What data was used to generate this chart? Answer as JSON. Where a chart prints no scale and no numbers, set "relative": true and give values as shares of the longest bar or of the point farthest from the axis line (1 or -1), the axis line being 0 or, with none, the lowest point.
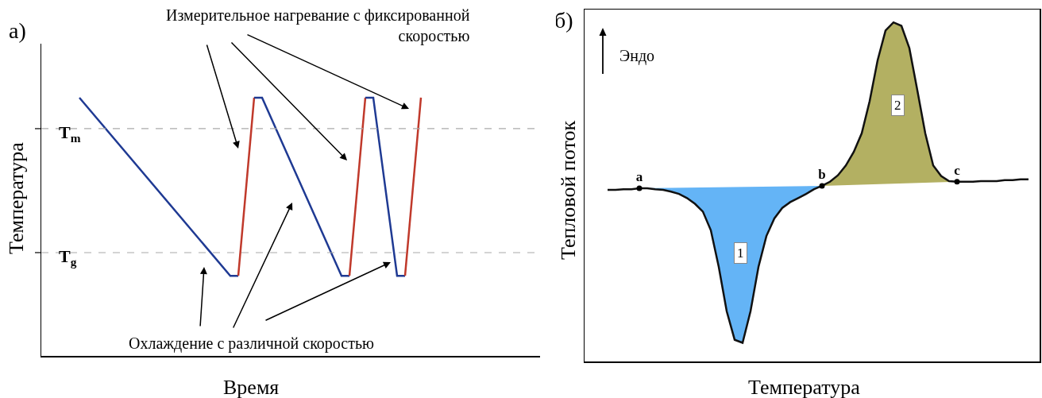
{
  "chart_data": [
    {
      "type": "line",
      "title": "а)",
      "xlabel": "Время",
      "ylabel": "Температура",
      "relative": true,
      "annotations": [
        "Измерительное нагревание с фиксированной скоростью",
        "Охлаждение с различной скоростью"
      ],
      "categories": [
        null,
        null,
        null,
        null,
        null,
        null,
        null,
        null,
        null,
        null,
        null,
        null,
        null,
        null,
        null,
        null,
        null,
        null,
        null,
        null,
        null,
        null,
        null,
        null,
        null,
        null,
        null,
        null,
        null,
        null,
        null,
        null,
        null,
        null,
        null,
        null,
        null,
        null,
        null,
        null,
        null,
        null,
        null,
        null,
        null,
        null,
        null,
        null,
        null,
        null,
        null,
        null,
        null,
        null,
        null,
        null,
        null,
        null,
        null,
        null,
        null,
        null
      ],
      "ref_lines": [
        {
          "axis": "y",
          "value": 0.88,
          "label": "T$_{m}$",
          "color": "#aaaaaa",
          "line_style": "dashed"
        },
        {
          "axis": "y",
          "value": 0.4,
          "label": "T$_{g}$",
          "color": "#aaaaaa",
          "line_style": "dashed"
        }
      ],
      "series": [
        {
          "color": "#1f3a93",
          "values": [
            null,
            null,
            null,
            null,
            null,
            1,
            null,
            null,
            null,
            null,
            null,
            null,
            null,
            null,
            null,
            null,
            null,
            null,
            null,
            null,
            null,
            null,
            null,
            null,
            0.31,
            0.31,
            null,
            null,
            null,
            null,
            null,
            null,
            null,
            null,
            null,
            null,
            null,
            null,
            null,
            null,
            null,
            null,
            null,
            null,
            null,
            null,
            null,
            null,
            null,
            null,
            null,
            null,
            null,
            null,
            null,
            null,
            null,
            null,
            null,
            null,
            null,
            null
          ]
        },
        {
          "color": "#c0392b",
          "values": [
            null,
            null,
            null,
            null,
            null,
            null,
            null,
            null,
            null,
            null,
            null,
            null,
            null,
            null,
            null,
            null,
            null,
            null,
            null,
            null,
            null,
            null,
            null,
            null,
            null,
            0.31,
            null,
            1,
            null,
            null,
            null,
            null,
            null,
            null,
            null,
            null,
            null,
            null,
            null,
            null,
            null,
            null,
            null,
            null,
            null,
            null,
            null,
            null,
            null,
            null,
            null,
            null,
            null,
            null,
            null,
            null,
            null,
            null,
            null,
            null,
            null,
            null
          ]
        },
        {
          "color": "#1f3a93",
          "values": [
            null,
            null,
            null,
            null,
            null,
            null,
            null,
            null,
            null,
            null,
            null,
            null,
            null,
            null,
            null,
            null,
            null,
            null,
            null,
            null,
            null,
            null,
            null,
            null,
            null,
            null,
            null,
            1,
            1,
            null,
            null,
            null,
            null,
            null,
            null,
            null,
            null,
            null,
            0.31,
            0.31,
            null,
            null,
            null,
            null,
            null,
            null,
            null,
            null,
            null,
            null,
            null,
            null,
            null,
            null,
            null,
            null,
            null,
            null,
            null,
            null,
            null,
            null
          ]
        },
        {
          "color": "#c0392b",
          "values": [
            null,
            null,
            null,
            null,
            null,
            null,
            null,
            null,
            null,
            null,
            null,
            null,
            null,
            null,
            null,
            null,
            null,
            null,
            null,
            null,
            null,
            null,
            null,
            null,
            null,
            null,
            null,
            null,
            null,
            null,
            null,
            null,
            null,
            null,
            null,
            null,
            null,
            null,
            null,
            0.31,
            null,
            1,
            null,
            null,
            null,
            null,
            null,
            null,
            null,
            null,
            null,
            null,
            null,
            null,
            null,
            null,
            null,
            null,
            null,
            null,
            null,
            null
          ]
        },
        {
          "color": "#1f3a93",
          "values": [
            null,
            null,
            null,
            null,
            null,
            null,
            null,
            null,
            null,
            null,
            null,
            null,
            null,
            null,
            null,
            null,
            null,
            null,
            null,
            null,
            null,
            null,
            null,
            null,
            null,
            null,
            null,
            null,
            null,
            null,
            null,
            null,
            null,
            null,
            null,
            null,
            null,
            null,
            null,
            null,
            null,
            1,
            1,
            null,
            null,
            0.31,
            0.31,
            null,
            null,
            null,
            null,
            null,
            null,
            null,
            null,
            null,
            null,
            null,
            null,
            null,
            null,
            null
          ]
        },
        {
          "color": "#c0392b",
          "values": [
            null,
            null,
            null,
            null,
            null,
            null,
            null,
            null,
            null,
            null,
            null,
            null,
            null,
            null,
            null,
            null,
            null,
            null,
            null,
            null,
            null,
            null,
            null,
            null,
            null,
            null,
            null,
            null,
            null,
            null,
            null,
            null,
            null,
            null,
            null,
            null,
            null,
            null,
            null,
            null,
            null,
            null,
            null,
            null,
            null,
            null,
            0.31,
            null,
            1,
            null,
            null,
            null,
            null,
            null,
            null,
            null,
            null,
            null,
            null,
            null,
            null,
            null
          ]
        }
      ]
    },
    {
      "type": "line",
      "title": "б)",
      "xlabel": "Температура",
      "ylabel": "Тепловой поток",
      "relative": true,
      "annotations": [
        "Эндо",
        "1",
        "2",
        {
          "text": "a",
          "y": 0.511
        },
        {
          "text": "b",
          "y": 0.518
        },
        {
          "text": "c",
          "y": 0.53
        }
      ],
      "categories": [
        null,
        null,
        null,
        null,
        null,
        null,
        null,
        null,
        null,
        null,
        null,
        null,
        null,
        null,
        null,
        null,
        null,
        null,
        null,
        null,
        null,
        null,
        null,
        null,
        null,
        null,
        null,
        null,
        null,
        null,
        null,
        null,
        null,
        null,
        null,
        null,
        null,
        null,
        null,
        null,
        null,
        null,
        null,
        null,
        null,
        null,
        null,
        null,
        null,
        null,
        null,
        null,
        null,
        null
      ],
      "series": [
        {
          "color": "#111111",
          "values": [
            0.506,
            0.506,
            0.508,
            0.508,
            0.511,
            0.511,
            0.508,
            0.506,
            0.501,
            0.494,
            0.482,
            0.465,
            0.442,
            0.387,
            0.279,
            0.148,
            0.064,
            0.055,
            0.148,
            0.279,
            0.37,
            0.422,
            0.453,
            0.47,
            0.482,
            0.494,
            0.508,
            0.518,
            0.53,
            0.549,
            0.578,
            0.618,
            0.673,
            0.768,
            0.888,
            0.976,
            1.0,
            0.99,
            0.924,
            0.8,
            0.673,
            0.578,
            0.547,
            0.532,
            0.53,
            0.53,
            0.53,
            0.532,
            0.532,
            0.532,
            0.535,
            0.535,
            0.537,
            0.537
          ]
        }
      ]
    }
  ]
}
